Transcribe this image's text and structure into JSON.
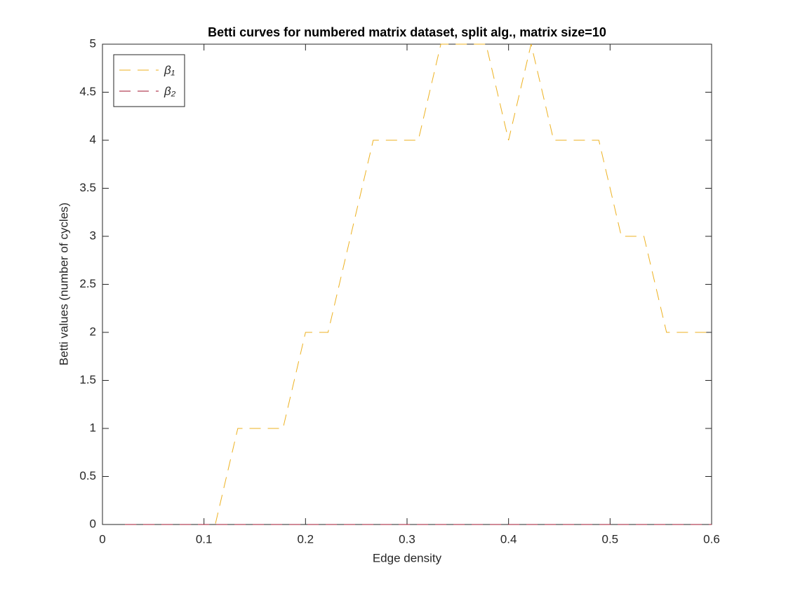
{
  "chart_data": {
    "type": "line",
    "title": "Betti curves for numbered matrix dataset, split alg., matrix size=10",
    "x_label": "Edge density",
    "y_label": "Betti values (number of cycles)",
    "x": [
      0.0222,
      0.0444,
      0.0667,
      0.0889,
      0.1111,
      0.1333,
      0.1556,
      0.1778,
      0.2,
      0.2222,
      0.2444,
      0.2667,
      0.2889,
      0.3111,
      0.3333,
      0.3556,
      0.3778,
      0.4,
      0.4222,
      0.4444,
      0.4667,
      0.4889,
      0.5111,
      0.5333,
      0.5556,
      0.5778,
      0.6
    ],
    "series": [
      {
        "name": "β₁",
        "color": "#EDB120",
        "values": [
          0,
          0,
          0,
          0,
          0,
          1,
          1,
          1,
          2,
          2,
          3,
          4,
          4,
          4,
          5,
          5,
          5,
          4,
          5,
          4,
          4,
          4,
          3,
          3,
          2,
          2,
          2
        ]
      },
      {
        "name": "β₂",
        "color": "#A2142F",
        "values": [
          0,
          0,
          0,
          0,
          0,
          0,
          0,
          0,
          0,
          0,
          0,
          0,
          0,
          0,
          0,
          0,
          0,
          0,
          0,
          0,
          0,
          0,
          0,
          0,
          0,
          0,
          0
        ]
      }
    ],
    "xlim": [
      0,
      0.6
    ],
    "xticks": [
      0,
      0.1,
      0.2,
      0.3,
      0.4,
      0.5,
      0.6
    ],
    "ylim": [
      0,
      5
    ],
    "yticks": [
      0,
      0.5,
      1,
      1.5,
      2,
      2.5,
      3,
      3.5,
      4,
      4.5,
      5
    ],
    "grid": false,
    "line_style": "dashed",
    "legend_position": "upper-left"
  }
}
